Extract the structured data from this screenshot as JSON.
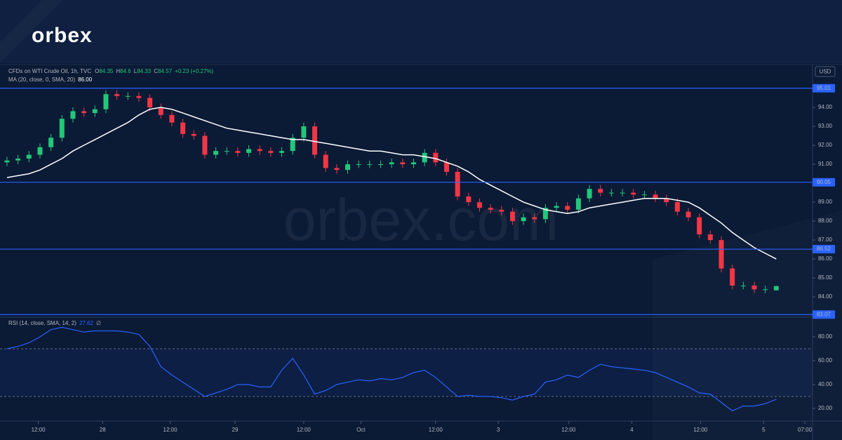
{
  "header": {
    "logo": "orbex"
  },
  "chart_data": {
    "type": "candlestick",
    "title": "CFDs on WTI Crude Oil, 1h, TVC",
    "ohlc_labels": [
      {
        "label": "O",
        "value": 84.35
      },
      {
        "label": "H",
        "value": 84.6
      },
      {
        "label": "L",
        "value": 84.33
      },
      {
        "label": "C",
        "value": 84.57
      }
    ],
    "change": "+0.23 (+0.27%)",
    "currency": "USD",
    "watermark": "orbex.com",
    "x": [
      0,
      2,
      4,
      6,
      8,
      10,
      12,
      14,
      16,
      18,
      20,
      22,
      24,
      26,
      28,
      30,
      32,
      34,
      36,
      38,
      40,
      42,
      44,
      46,
      48,
      50,
      52,
      54,
      56,
      58,
      60,
      62,
      64,
      66,
      68,
      70,
      72,
      74,
      76,
      78,
      80,
      82,
      84,
      86,
      88,
      90,
      92,
      94,
      96,
      98,
      100,
      102,
      104,
      106,
      108,
      110,
      112,
      114,
      116,
      118,
      120,
      122,
      124,
      126,
      128,
      130,
      132,
      134,
      136,
      138,
      140
    ],
    "xlim": [
      0,
      146.6
    ],
    "xticks": [
      {
        "value": 5.7,
        "label": "12:00"
      },
      {
        "value": 17.4,
        "label": "28"
      },
      {
        "value": 29.7,
        "label": "12:00"
      },
      {
        "value": 41.5,
        "label": "29"
      },
      {
        "value": 54,
        "label": "12:00"
      },
      {
        "value": 64.4,
        "label": "Oct"
      },
      {
        "value": 78,
        "label": "12:00"
      },
      {
        "value": 89.4,
        "label": "3"
      },
      {
        "value": 102.2,
        "label": "12:00"
      },
      {
        "value": 113.7,
        "label": "4"
      },
      {
        "value": 126.2,
        "label": "12:00"
      },
      {
        "value": 137.7,
        "label": "5"
      },
      {
        "value": 145.2,
        "label": "07:00"
      }
    ],
    "open": [
      91.1,
      91.2,
      91.3,
      91.5,
      91.9,
      92.4,
      93.4,
      93.8,
      93.7,
      93.9,
      94.7,
      94.6,
      94.6,
      94.5,
      94.0,
      93.6,
      93.2,
      92.6,
      92.5,
      91.5,
      91.7,
      91.7,
      91.6,
      91.8,
      91.7,
      91.6,
      91.7,
      92.4,
      93.0,
      91.5,
      90.8,
      90.7,
      91.0,
      91.0,
      91.0,
      91.0,
      91.1,
      91.0,
      91.1,
      91.6,
      91.1,
      90.6,
      89.3,
      89.0,
      88.7,
      88.6,
      88.5,
      88.0,
      88.2,
      88.1,
      88.7,
      88.8,
      88.6,
      89.2,
      89.7,
      89.5,
      89.5,
      89.5,
      89.4,
      89.4,
      89.2,
      89.0,
      88.5,
      88.2,
      87.3,
      87.0,
      85.5,
      84.6,
      84.6,
      84.4,
      84.35
    ],
    "high": [
      91.4,
      91.5,
      91.7,
      92.1,
      92.6,
      93.6,
      94.0,
      94.0,
      94.1,
      94.9,
      94.9,
      94.8,
      94.8,
      94.7,
      94.2,
      93.8,
      93.4,
      92.8,
      92.7,
      91.9,
      91.9,
      91.9,
      92.0,
      92.0,
      91.9,
      91.9,
      92.6,
      93.2,
      93.2,
      91.7,
      91.0,
      91.2,
      91.2,
      91.2,
      91.2,
      91.3,
      91.3,
      91.3,
      91.8,
      91.8,
      91.3,
      90.8,
      89.5,
      89.2,
      88.9,
      88.8,
      88.7,
      88.4,
      88.4,
      88.9,
      89.0,
      89.0,
      89.4,
      89.9,
      89.9,
      89.7,
      89.7,
      89.7,
      89.6,
      89.6,
      89.4,
      89.2,
      88.7,
      88.4,
      87.5,
      87.2,
      85.7,
      84.8,
      84.8,
      84.6,
      84.6
    ],
    "low": [
      90.9,
      91.0,
      91.1,
      91.3,
      91.7,
      92.2,
      93.2,
      93.5,
      93.5,
      93.7,
      94.4,
      94.4,
      94.3,
      93.8,
      93.4,
      93.0,
      92.4,
      92.3,
      91.3,
      91.3,
      91.5,
      91.4,
      91.4,
      91.5,
      91.4,
      91.4,
      91.5,
      92.2,
      91.3,
      90.6,
      90.5,
      90.5,
      90.8,
      90.8,
      90.8,
      90.8,
      90.8,
      90.8,
      90.9,
      90.9,
      90.4,
      89.1,
      88.8,
      88.5,
      88.4,
      88.3,
      87.8,
      87.8,
      87.9,
      87.9,
      88.5,
      88.4,
      88.4,
      89.0,
      89.3,
      89.3,
      89.3,
      89.2,
      89.2,
      89.0,
      88.8,
      88.3,
      88.0,
      87.1,
      86.8,
      85.3,
      84.4,
      84.4,
      84.2,
      84.2,
      84.33
    ],
    "close": [
      91.2,
      91.3,
      91.5,
      91.9,
      92.4,
      93.4,
      93.8,
      93.7,
      93.9,
      94.7,
      94.6,
      94.6,
      94.5,
      94.0,
      93.6,
      93.2,
      92.6,
      92.5,
      91.5,
      91.7,
      91.7,
      91.6,
      91.8,
      91.7,
      91.6,
      91.7,
      92.4,
      93.0,
      91.5,
      90.8,
      90.7,
      91.0,
      91.0,
      91.0,
      91.0,
      91.1,
      91.0,
      91.1,
      91.6,
      91.1,
      90.6,
      89.3,
      89.0,
      88.7,
      88.6,
      88.5,
      88.0,
      88.2,
      88.1,
      88.7,
      88.8,
      88.6,
      89.2,
      89.7,
      89.5,
      89.5,
      89.5,
      89.4,
      89.4,
      89.2,
      89.0,
      88.5,
      88.2,
      87.3,
      87.0,
      85.5,
      84.6,
      84.6,
      84.4,
      84.4,
      84.57
    ],
    "up_color": "#22c77a",
    "down_color": "#f23645",
    "ylim": [
      82.93,
      96.26
    ],
    "yticks": [
      {
        "value": 84,
        "label": "84.00"
      },
      {
        "value": 85,
        "label": "85.00"
      },
      {
        "value": 86,
        "label": "86.00"
      },
      {
        "value": 87,
        "label": "87.00"
      },
      {
        "value": 88,
        "label": "88.00"
      },
      {
        "value": 89,
        "label": "89.00"
      },
      {
        "value": 91,
        "label": "91.00"
      },
      {
        "value": 92,
        "label": "92.00"
      },
      {
        "value": 93,
        "label": "93.00"
      },
      {
        "value": 94,
        "label": "94.00"
      }
    ],
    "levels": [
      95.01,
      90.05,
      86.52,
      83.07
    ],
    "level_color": "#2962ff",
    "ma": {
      "name": "MA (20, close, 0, SMA, 20)",
      "last": {
        "value": 86,
        "label": "86.00"
      },
      "color": "#ffffff",
      "values": [
        90.3,
        90.4,
        90.5,
        90.7,
        91.0,
        91.3,
        91.7,
        92.0,
        92.3,
        92.6,
        92.9,
        93.2,
        93.6,
        93.9,
        94.0,
        93.9,
        93.7,
        93.5,
        93.3,
        93.1,
        92.9,
        92.8,
        92.7,
        92.6,
        92.5,
        92.4,
        92.3,
        92.3,
        92.2,
        92.1,
        92.0,
        91.9,
        91.8,
        91.7,
        91.7,
        91.6,
        91.5,
        91.5,
        91.4,
        91.3,
        91.1,
        90.9,
        90.6,
        90.2,
        89.9,
        89.6,
        89.3,
        89.0,
        88.8,
        88.6,
        88.5,
        88.4,
        88.5,
        88.7,
        88.8,
        88.9,
        89.0,
        89.1,
        89.2,
        89.2,
        89.2,
        89.1,
        89.0,
        88.7,
        88.3,
        87.9,
        87.4,
        87.0,
        86.6,
        86.3,
        86.0
      ]
    },
    "rsi": {
      "name": "RSI (14, close, SMA, 14, 2)",
      "last": 27.62,
      "extra": "∅",
      "color": "#2962ff",
      "values": [
        70,
        72,
        75,
        80,
        86,
        88,
        86,
        84,
        85,
        85,
        85,
        84,
        82,
        72,
        55,
        48,
        42,
        36,
        30,
        33,
        36,
        40,
        40,
        38,
        38,
        52,
        62,
        48,
        32,
        35,
        40,
        42,
        44,
        43,
        45,
        44,
        46,
        50,
        52,
        46,
        38,
        30,
        31,
        30,
        30,
        29,
        27,
        30,
        32,
        42,
        44,
        48,
        46,
        52,
        57,
        55,
        54,
        53,
        52,
        50,
        46,
        42,
        38,
        33,
        32,
        25,
        18,
        22,
        22,
        24,
        27.62
      ],
      "ylim": [
        9.4,
        96.5
      ],
      "yticks": [
        {
          "value": 20,
          "label": "20.00"
        },
        {
          "value": 40,
          "label": "40.00"
        },
        {
          "value": 60,
          "label": "60.00"
        },
        {
          "value": 80,
          "label": "80.00"
        }
      ],
      "band": [
        30,
        70
      ]
    }
  }
}
